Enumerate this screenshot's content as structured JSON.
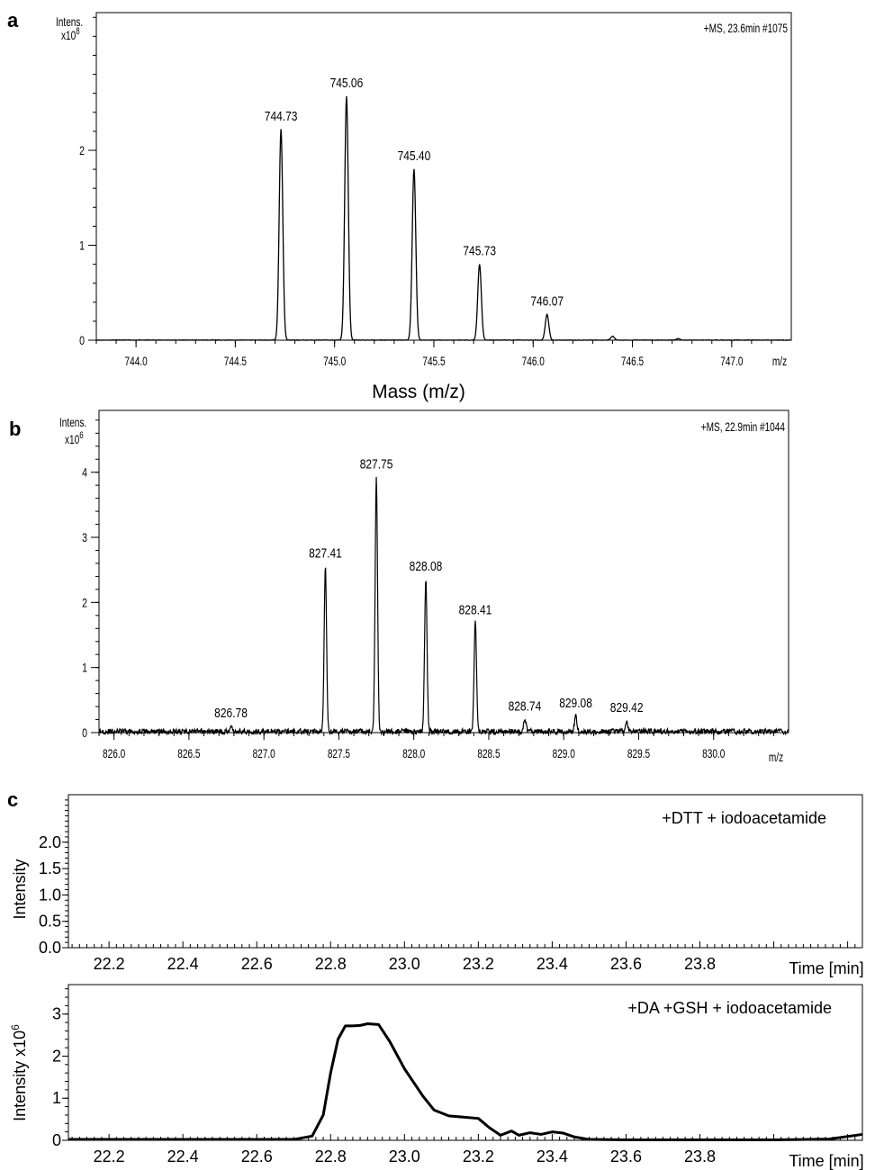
{
  "panels": {
    "a": {
      "letter": "a",
      "ylabel": "Intens.",
      "yscale_base": "x10",
      "yscale_exp": "8",
      "info": "+MS, 23.6min #1075",
      "xunit": "m/z",
      "xlabel": "Mass (m/z)"
    },
    "b": {
      "letter": "b",
      "ylabel": "Intens.",
      "yscale_base": "x10",
      "yscale_exp": "6",
      "info": "+MS, 22.9min #1044",
      "xunit": "m/z"
    },
    "c": {
      "letter": "c"
    }
  },
  "chart_data": [
    {
      "id": "a",
      "type": "line",
      "xlim": [
        743.8,
        747.3
      ],
      "ylim": [
        0,
        3.45
      ],
      "x_ticks": [
        "744.0",
        "744.5",
        "745.0",
        "745.5",
        "746.0",
        "746.5",
        "747.0"
      ],
      "y_ticks": [
        "0",
        "1",
        "2"
      ],
      "peaks": [
        {
          "x": 744.73,
          "y": 2.22,
          "label": "744.73"
        },
        {
          "x": 745.06,
          "y": 2.57,
          "label": "745.06"
        },
        {
          "x": 745.4,
          "y": 1.8,
          "label": "745.40"
        },
        {
          "x": 745.73,
          "y": 0.8,
          "label": "745.73"
        },
        {
          "x": 746.07,
          "y": 0.27,
          "label": "746.07"
        },
        {
          "x": 746.4,
          "y": 0.04,
          "label": ""
        },
        {
          "x": 746.73,
          "y": 0.015,
          "label": ""
        }
      ],
      "noise": 0.004
    },
    {
      "id": "b",
      "type": "line",
      "xlim": [
        825.9,
        830.5
      ],
      "ylim": [
        0,
        4.95
      ],
      "x_ticks": [
        "826.0",
        "826.5",
        "827.0",
        "827.5",
        "828.0",
        "828.5",
        "829.0",
        "829.5",
        "830.0"
      ],
      "y_ticks": [
        "0",
        "1",
        "2",
        "3",
        "4"
      ],
      "peaks": [
        {
          "x": 826.78,
          "y": 0.1,
          "label": "826.78"
        },
        {
          "x": 827.41,
          "y": 2.55,
          "label": "827.41"
        },
        {
          "x": 827.75,
          "y": 3.92,
          "label": "827.75"
        },
        {
          "x": 828.08,
          "y": 2.35,
          "label": "828.08"
        },
        {
          "x": 828.41,
          "y": 1.68,
          "label": "828.41"
        },
        {
          "x": 828.74,
          "y": 0.2,
          "label": "828.74"
        },
        {
          "x": 829.08,
          "y": 0.25,
          "label": "829.08"
        },
        {
          "x": 829.42,
          "y": 0.18,
          "label": "829.42"
        }
      ],
      "noise": 0.07
    },
    {
      "id": "c1",
      "type": "line",
      "title": "+DTT + iodoacetamide",
      "ylabel": "Intensity",
      "xlabel": "Time [min]",
      "xlim": [
        22.09,
        24.24
      ],
      "ylim": [
        0,
        2.9
      ],
      "x_ticks": [
        "22.2",
        "22.4",
        "22.6",
        "22.8",
        "23.0",
        "23.2",
        "23.4",
        "23.6",
        "23.8"
      ],
      "y_ticks": [
        "0.0",
        "0.5",
        "1.0",
        "1.5",
        "2.0"
      ],
      "x": [],
      "y": []
    },
    {
      "id": "c2",
      "type": "line",
      "title": "+DA +GSH + iodoacetamide",
      "ylabel": "Intensity x10",
      "ylabel_exp": "6",
      "xlabel": "Time [min]",
      "xlim": [
        22.09,
        24.24
      ],
      "ylim": [
        0,
        3.7
      ],
      "x_ticks": [
        "22.2",
        "22.4",
        "22.6",
        "22.8",
        "23.0",
        "23.2",
        "23.4",
        "23.6",
        "23.8"
      ],
      "y_ticks": [
        "0",
        "1",
        "2",
        "3"
      ],
      "x": [
        22.09,
        22.3,
        22.5,
        22.7,
        22.75,
        22.78,
        22.8,
        22.82,
        22.84,
        22.86,
        22.88,
        22.9,
        22.93,
        22.96,
        23.0,
        23.05,
        23.08,
        23.12,
        23.16,
        23.2,
        23.23,
        23.26,
        23.29,
        23.31,
        23.34,
        23.37,
        23.4,
        23.43,
        23.46,
        23.5,
        23.6,
        23.8,
        24.0,
        24.15,
        24.24
      ],
      "y": [
        0.02,
        0.02,
        0.02,
        0.02,
        0.1,
        0.6,
        1.6,
        2.4,
        2.72,
        2.72,
        2.73,
        2.77,
        2.75,
        2.35,
        1.7,
        1.05,
        0.72,
        0.58,
        0.55,
        0.52,
        0.3,
        0.12,
        0.22,
        0.12,
        0.18,
        0.14,
        0.2,
        0.17,
        0.08,
        0.02,
        0.01,
        0.01,
        0.01,
        0.03,
        0.14
      ]
    }
  ]
}
